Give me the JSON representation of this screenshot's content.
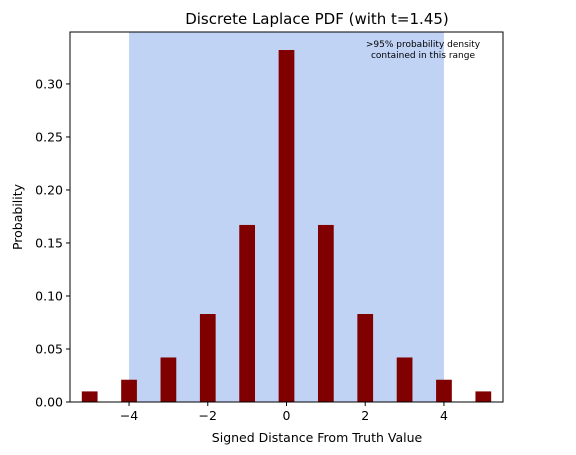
{
  "chart_data": {
    "type": "bar",
    "title": "Discrete Laplace PDF (with t=1.45)",
    "xlabel": "Signed Distance From Truth Value",
    "ylabel": "Probability",
    "x": [
      -5,
      -4,
      -3,
      -2,
      -1,
      0,
      1,
      2,
      3,
      4,
      5
    ],
    "values": [
      0.01,
      0.021,
      0.042,
      0.083,
      0.167,
      0.332,
      0.167,
      0.083,
      0.042,
      0.021,
      0.01
    ],
    "bar_color": "#800000",
    "xlim": [
      -5.5,
      5.5
    ],
    "ylim": [
      0,
      0.349
    ],
    "xticks": [
      -4,
      -2,
      0,
      2,
      4
    ],
    "xtick_labels": [
      "−4",
      "−2",
      "0",
      "2",
      "4"
    ],
    "yticks": [
      0.0,
      0.05,
      0.1,
      0.15,
      0.2,
      0.25,
      0.3
    ],
    "ytick_labels": [
      "0.00",
      "0.05",
      "0.10",
      "0.15",
      "0.20",
      "0.25",
      "0.30"
    ],
    "shaded_range": {
      "x": [
        -4,
        4
      ],
      "color": "#c1d3f5",
      "annotation": [
        ">95% probability density",
        "contained in this range"
      ]
    },
    "grid": false,
    "legend": "none"
  }
}
